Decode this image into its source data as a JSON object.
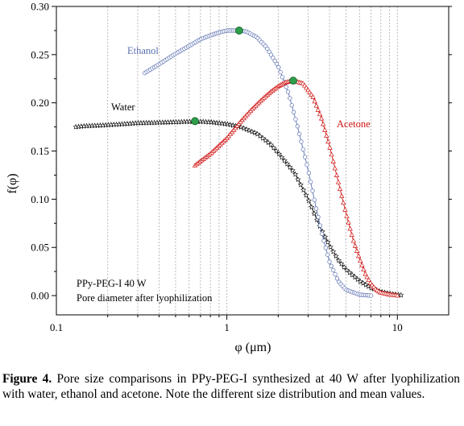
{
  "chart_data": {
    "type": "line",
    "xlabel": "φ (μm)",
    "ylabel": "f(φ)",
    "x_scale": "log",
    "xlim": [
      0.1,
      20
    ],
    "ylim": [
      -0.02,
      0.3
    ],
    "x_ticks": [
      0.1,
      1,
      10
    ],
    "x_tick_labels": [
      "0.1",
      "1",
      "10"
    ],
    "y_ticks": [
      0.0,
      0.05,
      0.1,
      0.15,
      0.2,
      0.25,
      0.3
    ],
    "y_tick_labels": [
      "0.00",
      "0.05",
      "0.10",
      "0.15",
      "0.20",
      "0.25",
      "0.30"
    ],
    "grid": "dotted vertical lines at minor log ticks",
    "annotations": [
      "PPy-PEG-I 40 W",
      "Pore diameter after lyophilization"
    ],
    "series": [
      {
        "name": "Water",
        "color": "#000000",
        "marker": "star",
        "mean": {
          "x": 0.65,
          "y": 0.181
        },
        "points": [
          [
            0.13,
            0.175
          ],
          [
            0.15,
            0.176
          ],
          [
            0.18,
            0.1765
          ],
          [
            0.2,
            0.177
          ],
          [
            0.25,
            0.178
          ],
          [
            0.3,
            0.179
          ],
          [
            0.4,
            0.1795
          ],
          [
            0.5,
            0.18
          ],
          [
            0.6,
            0.1805
          ],
          [
            0.7,
            0.1805
          ],
          [
            0.8,
            0.18
          ],
          [
            1.0,
            0.178
          ],
          [
            1.2,
            0.175
          ],
          [
            1.5,
            0.168
          ],
          [
            1.8,
            0.157
          ],
          [
            2.0,
            0.148
          ],
          [
            2.5,
            0.127
          ],
          [
            3.0,
            0.1
          ],
          [
            3.5,
            0.072
          ],
          [
            4.0,
            0.052
          ],
          [
            4.5,
            0.037
          ],
          [
            5.0,
            0.027
          ],
          [
            6.0,
            0.015
          ],
          [
            7.0,
            0.008
          ],
          [
            8.0,
            0.004
          ],
          [
            9.0,
            0.002
          ],
          [
            10.0,
            0.001
          ],
          [
            10.5,
            0.0005
          ]
        ]
      },
      {
        "name": "Ethanol",
        "color": "#5a6fb0",
        "marker": "circle",
        "mean": {
          "x": 1.18,
          "y": 0.275
        },
        "points": [
          [
            0.33,
            0.231
          ],
          [
            0.4,
            0.24
          ],
          [
            0.5,
            0.251
          ],
          [
            0.6,
            0.259
          ],
          [
            0.7,
            0.266
          ],
          [
            0.8,
            0.27
          ],
          [
            0.9,
            0.273
          ],
          [
            1.0,
            0.275
          ],
          [
            1.18,
            0.275
          ],
          [
            1.3,
            0.274
          ],
          [
            1.5,
            0.268
          ],
          [
            1.7,
            0.258
          ],
          [
            2.0,
            0.238
          ],
          [
            2.3,
            0.21
          ],
          [
            2.6,
            0.175
          ],
          [
            3.0,
            0.13
          ],
          [
            3.3,
            0.095
          ],
          [
            3.6,
            0.065
          ],
          [
            4.0,
            0.035
          ],
          [
            4.5,
            0.015
          ],
          [
            5.0,
            0.006
          ],
          [
            6.0,
            0.001
          ],
          [
            7.0,
            0.0
          ]
        ]
      },
      {
        "name": "Acetone",
        "color": "#d01010",
        "marker": "triangle",
        "mean": {
          "x": 2.45,
          "y": 0.223
        },
        "points": [
          [
            0.65,
            0.135
          ],
          [
            0.8,
            0.147
          ],
          [
            1.0,
            0.163
          ],
          [
            1.2,
            0.18
          ],
          [
            1.4,
            0.193
          ],
          [
            1.6,
            0.203
          ],
          [
            1.8,
            0.211
          ],
          [
            2.0,
            0.217
          ],
          [
            2.2,
            0.221
          ],
          [
            2.45,
            0.223
          ],
          [
            2.8,
            0.22
          ],
          [
            3.2,
            0.206
          ],
          [
            3.6,
            0.183
          ],
          [
            4.0,
            0.155
          ],
          [
            4.5,
            0.118
          ],
          [
            5.0,
            0.085
          ],
          [
            5.5,
            0.058
          ],
          [
            6.0,
            0.038
          ],
          [
            6.5,
            0.022
          ],
          [
            7.0,
            0.012
          ],
          [
            7.5,
            0.006
          ],
          [
            8.0,
            0.003
          ],
          [
            9.0,
            0.001
          ],
          [
            10.0,
            0.0
          ]
        ]
      }
    ]
  },
  "caption": {
    "label": "Figure 4.",
    "text": " Pore size comparisons in PPy-PEG-I synthesized at 40 W after lyophilization with water, ethanol and acetone. Note the different size distribution and mean values."
  }
}
